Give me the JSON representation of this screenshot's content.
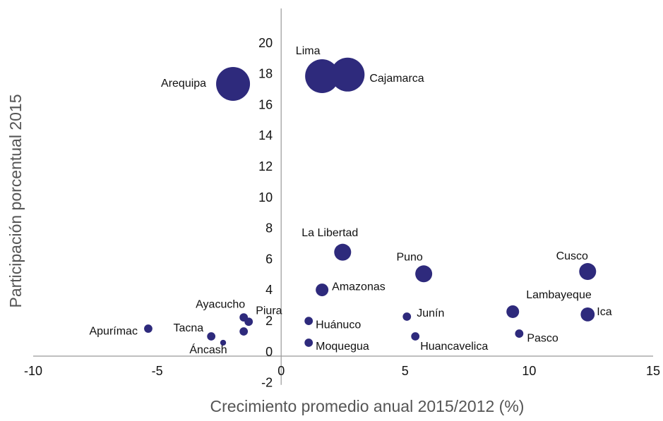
{
  "chart_data": {
    "type": "bubble",
    "xlabel": "Crecimiento promedio anual 2015/2012 (%)",
    "ylabel": "Participación porcentual 2015",
    "color": "#2e2a7c",
    "xlim": [
      -10,
      15
    ],
    "xticks": [
      -10,
      -5,
      0,
      5,
      10,
      15
    ],
    "ylim": [
      -2,
      22
    ],
    "yticks": [
      -2,
      0,
      2,
      4,
      6,
      8,
      10,
      12,
      14,
      16,
      18,
      20
    ],
    "grid": false,
    "labels": [
      "Arequipa",
      "Lima",
      "Cajamarca",
      "La Libertad",
      "Puno",
      "Cusco",
      "Amazonas",
      "Lambayeque",
      "Ica",
      "Junín",
      "Huánuco",
      "Ayacucho",
      "Piura",
      null,
      "Apurímac",
      "Tacna",
      "Áncash",
      "Pasco",
      "Huancavelica",
      "Moquegua"
    ],
    "x": [
      -1.94,
      1.65,
      2.68,
      2.48,
      5.75,
      12.36,
      1.65,
      9.34,
      12.36,
      5.07,
      1.11,
      -1.51,
      -1.31,
      -1.51,
      -5.36,
      -2.82,
      -2.34,
      9.6,
      5.41,
      1.11
    ],
    "values": [
      17.4,
      17.9,
      18.0,
      6.5,
      5.1,
      5.25,
      4.06,
      2.65,
      2.47,
      2.33,
      2.05,
      2.28,
      2.0,
      1.37,
      1.55,
      1.05,
      0.64,
      1.23,
      1.05,
      0.64
    ],
    "sizes": [
      100,
      100,
      100,
      25,
      25,
      25,
      14,
      14,
      17,
      6,
      6,
      6,
      6,
      6,
      6,
      6,
      3,
      6,
      6,
      6
    ]
  }
}
